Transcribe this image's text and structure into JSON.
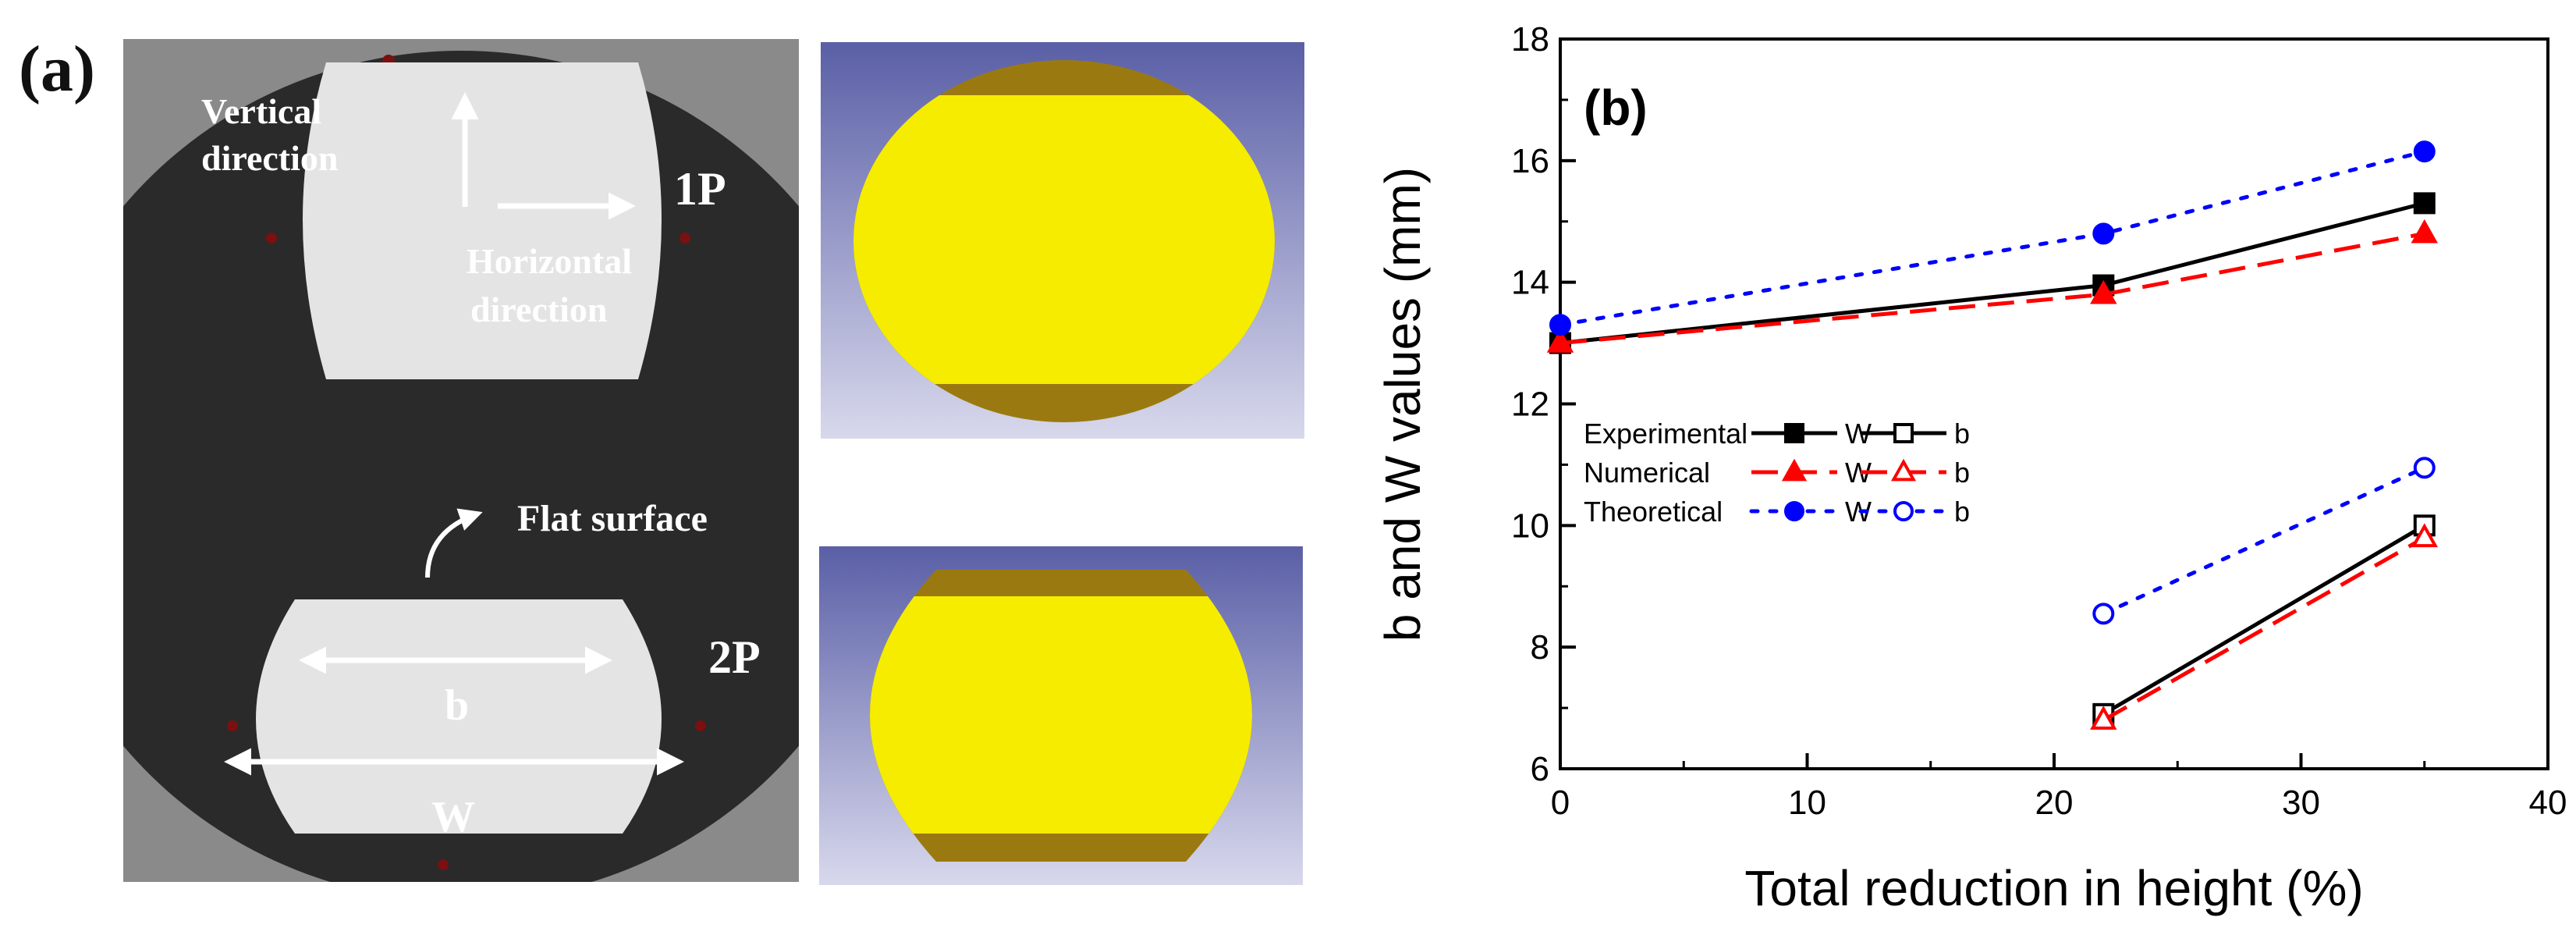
{
  "panel_a": {
    "label": "(a)",
    "annotations": {
      "vertical_line1": "Vertical",
      "vertical_line2": "direction",
      "horizontal_line1": "Horizontal",
      "horizontal_line2": "direction",
      "flat_surface": "Flat surface",
      "pass1": "1P",
      "pass2": "2P",
      "dim_b": "b",
      "dim_W": "W"
    },
    "colors": {
      "sim_background": "#6e74b0",
      "sim_cross_section": "#f5ec00",
      "sim_bulge": "#9a7a10",
      "photo_disc": "#2a2a2a",
      "photo_specimen": "#e4e4e4"
    }
  },
  "chart_data": {
    "type": "line",
    "panel_label": "(b)",
    "xlabel": "Total reduction in height (%)",
    "ylabel": "b and W values (mm)",
    "xlim": [
      0,
      40
    ],
    "ylim": [
      6,
      18
    ],
    "xticks": [
      0,
      10,
      20,
      30,
      40
    ],
    "yticks": [
      6,
      8,
      10,
      12,
      14,
      16,
      18
    ],
    "grid": false,
    "legend_position": "middle-left",
    "legend_groups": [
      "Experimental",
      "Numerical",
      "Theoretical"
    ],
    "series": [
      {
        "name": "Experimental W",
        "group": "Experimental",
        "key": "W",
        "color": "#000000",
        "dash": "solid",
        "marker": "square",
        "filled": true,
        "x": [
          0,
          22,
          35
        ],
        "y": [
          13.0,
          13.95,
          15.3
        ]
      },
      {
        "name": "Experimental b",
        "group": "Experimental",
        "key": "b",
        "color": "#000000",
        "dash": "solid",
        "marker": "square",
        "filled": false,
        "x": [
          22,
          35
        ],
        "y": [
          6.9,
          10.0
        ]
      },
      {
        "name": "Numerical W",
        "group": "Numerical",
        "key": "W",
        "color": "#ff0000",
        "dash": "dashed",
        "marker": "triangle",
        "filled": true,
        "x": [
          0,
          22,
          35
        ],
        "y": [
          13.0,
          13.8,
          14.8
        ]
      },
      {
        "name": "Numerical b",
        "group": "Numerical",
        "key": "b",
        "color": "#ff0000",
        "dash": "dashed",
        "marker": "triangle",
        "filled": false,
        "x": [
          22,
          35
        ],
        "y": [
          6.8,
          9.8
        ]
      },
      {
        "name": "Theoretical W",
        "group": "Theoretical",
        "key": "W",
        "color": "#0000ff",
        "dash": "dotted",
        "marker": "circle",
        "filled": true,
        "x": [
          0,
          22,
          35
        ],
        "y": [
          13.3,
          14.8,
          16.15
        ]
      },
      {
        "name": "Theoretical b",
        "group": "Theoretical",
        "key": "b",
        "color": "#0000ff",
        "dash": "dotted",
        "marker": "circle",
        "filled": false,
        "x": [
          22,
          35
        ],
        "y": [
          8.55,
          10.95
        ]
      }
    ]
  }
}
